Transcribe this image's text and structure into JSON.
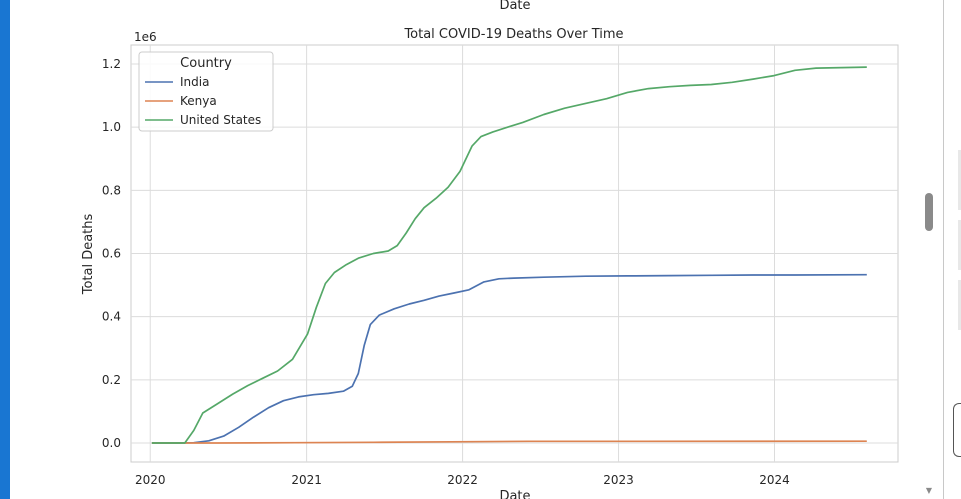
{
  "cell": {
    "prev_xlabel": "Date"
  },
  "chart_data": {
    "type": "line",
    "title": "Total COVID-19 Deaths Over Time",
    "xlabel": "Date",
    "ylabel": "Total Deaths",
    "y_offset_label": "1e6",
    "x_ticks": [
      "2020",
      "2021",
      "2022",
      "2023",
      "2024"
    ],
    "y_ticks": [
      "0.0",
      "0.2",
      "0.4",
      "0.6",
      "0.8",
      "1.0",
      "1.2"
    ],
    "xlim": [
      "2019-11-17",
      "2024-10-16"
    ],
    "ylim": [
      -60000,
      1260000
    ],
    "grid": true,
    "legend": {
      "title": "Country",
      "placement": "top-left"
    },
    "series": [
      {
        "name": "India",
        "color": "#4c72b0",
        "x": [
          "2020-01-05",
          "2020-03-01",
          "2020-04-12",
          "2020-05-17",
          "2020-06-21",
          "2020-07-26",
          "2020-08-30",
          "2020-10-04",
          "2020-11-08",
          "2020-12-13",
          "2021-01-17",
          "2021-02-21",
          "2021-03-28",
          "2021-04-18",
          "2021-05-02",
          "2021-05-16",
          "2021-05-30",
          "2021-06-20",
          "2021-07-25",
          "2021-08-29",
          "2021-10-03",
          "2021-11-07",
          "2021-12-12",
          "2022-01-16",
          "2022-02-20",
          "2022-03-27",
          "2022-05-01",
          "2022-07-10",
          "2022-10-16",
          "2023-01-22",
          "2023-04-30",
          "2023-08-06",
          "2023-11-12",
          "2024-02-18",
          "2024-08-04"
        ],
        "values": [
          0,
          0,
          1000,
          7000,
          22000,
          50000,
          82000,
          112000,
          134000,
          146000,
          153000,
          157000,
          164000,
          180000,
          220000,
          310000,
          375000,
          405000,
          425000,
          440000,
          452000,
          465000,
          475000,
          485000,
          510000,
          520000,
          522000,
          525000,
          528000,
          529000,
          530000,
          531000,
          532000,
          532000,
          533000
        ]
      },
      {
        "name": "Kenya",
        "color": "#dd8452",
        "x": [
          "2020-01-05",
          "2020-06-07",
          "2020-12-06",
          "2021-06-06",
          "2021-12-05",
          "2022-06-05",
          "2023-01-01",
          "2024-08-04"
        ],
        "values": [
          0,
          0,
          1000,
          2500,
          4000,
          5500,
          5650,
          5700
        ]
      },
      {
        "name": "United States",
        "color": "#55a868",
        "x": [
          "2020-01-05",
          "2020-03-22",
          "2020-04-12",
          "2020-05-03",
          "2020-06-07",
          "2020-07-12",
          "2020-08-16",
          "2020-09-20",
          "2020-10-25",
          "2020-11-29",
          "2021-01-03",
          "2021-01-24",
          "2021-02-14",
          "2021-03-07",
          "2021-04-04",
          "2021-05-02",
          "2021-06-06",
          "2021-07-11",
          "2021-08-01",
          "2021-08-22",
          "2021-09-12",
          "2021-10-03",
          "2021-10-31",
          "2021-11-28",
          "2021-12-26",
          "2022-01-23",
          "2022-02-13",
          "2022-03-13",
          "2022-04-17",
          "2022-05-22",
          "2022-07-10",
          "2022-08-28",
          "2022-10-16",
          "2022-12-04",
          "2023-01-22",
          "2023-03-12",
          "2023-04-30",
          "2023-06-18",
          "2023-08-06",
          "2023-09-24",
          "2023-11-12",
          "2023-12-31",
          "2024-02-18",
          "2024-04-07",
          "2024-08-04"
        ],
        "values": [
          0,
          0,
          40000,
          95000,
          125000,
          155000,
          182000,
          205000,
          228000,
          265000,
          345000,
          430000,
          505000,
          540000,
          565000,
          585000,
          600000,
          608000,
          625000,
          665000,
          710000,
          745000,
          775000,
          810000,
          860000,
          940000,
          970000,
          985000,
          1000000,
          1015000,
          1040000,
          1060000,
          1075000,
          1090000,
          1110000,
          1122000,
          1128000,
          1132000,
          1135000,
          1142000,
          1152000,
          1163000,
          1180000,
          1187000,
          1190000
        ]
      }
    ]
  }
}
